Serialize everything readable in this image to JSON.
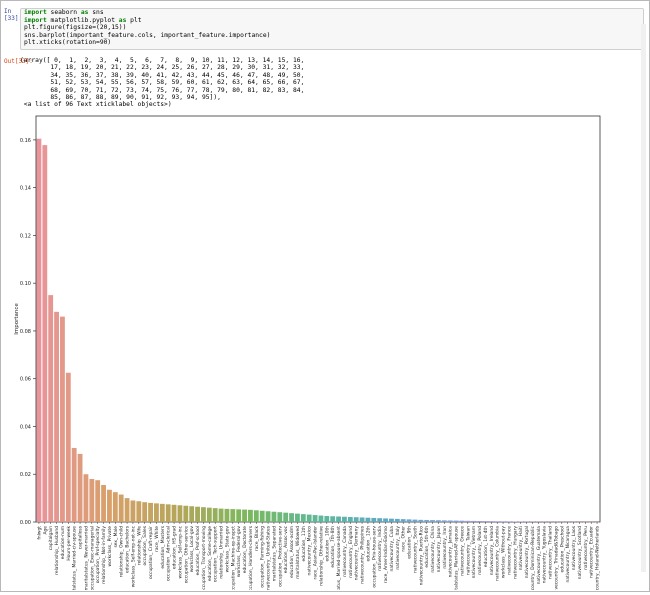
{
  "cell_in": {
    "prompt": "In [33]:",
    "code": [
      [
        [
          "kw",
          "import"
        ],
        [
          "t",
          " seaborn "
        ],
        [
          "kw",
          "as"
        ],
        [
          "t",
          " sns"
        ]
      ],
      [
        [
          "kw",
          "import"
        ],
        [
          "t",
          " matplotlib.pyplot "
        ],
        [
          "kw",
          "as"
        ],
        [
          "t",
          " plt"
        ]
      ],
      [
        [
          "t",
          "plt.figure(figsize=(20,15))"
        ]
      ],
      [
        [
          "t",
          "sns.barplot(important_feature.cols, important_feature.importance)"
        ]
      ],
      [
        [
          "t",
          "plt.xticks(rotation=90)"
        ]
      ]
    ]
  },
  "cell_out": {
    "prompt": "Out[33]:",
    "text": "(array([ 0,  1,  2,  3,  4,  5,  6,  7,  8,  9, 10, 11, 12, 13, 14, 15, 16,\n        17, 18, 19, 20, 21, 22, 23, 24, 25, 26, 27, 28, 29, 30, 31, 32, 33,\n        34, 35, 36, 37, 38, 39, 40, 41, 42, 43, 44, 45, 46, 47, 48, 49, 50,\n        51, 52, 53, 54, 55, 56, 57, 58, 59, 60, 61, 62, 63, 64, 65, 66, 67,\n        68, 69, 70, 71, 72, 73, 74, 75, 76, 77, 78, 79, 80, 81, 82, 83, 84,\n        85, 86, 87, 88, 89, 90, 91, 92, 93, 94, 95]),\n <a list of 96 Text xticklabel objects>)"
  },
  "chart_data": {
    "type": "bar",
    "title": "",
    "xlabel": "",
    "ylabel": "Importance",
    "ylim": [
      0,
      0.17
    ],
    "yticks": [
      0.0,
      0.02,
      0.04,
      0.06,
      0.08,
      0.1,
      0.12,
      0.14,
      0.16
    ],
    "grid": false,
    "palette": [
      "#e8949a",
      "#d9a06a",
      "#b4a65a",
      "#7ab85e",
      "#5fb89a",
      "#5fa8c4",
      "#8aa0dc",
      "#b98fdc",
      "#e092c8"
    ],
    "categories": [
      "fnlwgt",
      "Age",
      "capitalgain",
      "relationship_ Husband",
      "education-num",
      "Hours-per-week",
      "maritalstatus_ Married-civ-spouse",
      "capitalloss",
      "maritalstatus_ Never-married",
      "occupation_ Exec-managerial",
      "occupation_ Prof-specialty",
      "relationship_ Not-in-family",
      "workclass_ Private",
      "sex_ Male",
      "relationship_ Own-child",
      "education_ Bachelors",
      "workclass_ Self-emp-not-inc",
      "relationship_ Wife",
      "occupation_ Sales",
      "occupation_ Craft-repair",
      "race_ White",
      "education_ Masters",
      "occupation_ Adm-clerical",
      "education_ HS-grad",
      "workclass_ Self-emp-inc",
      "occupation_ Other-service",
      "workclass_ Local-gov",
      "education_ Prof-school",
      "occupation_ Transport-moving",
      "education_ Some-college",
      "occupation_ Tech-support",
      "relationship_ Unmarried",
      "workclass_ State-gov",
      "occupation_ Machine-op-inspct",
      "workclass_ Federal-gov",
      "education_ Doctorate",
      "occupation_ Handlers-cleaners",
      "race_ Black",
      "occupation_ Farming-fishing",
      "nativecountry_ United-States",
      "maritalstatus_ Separated",
      "occupation_ Protective-serv",
      "education_ Assoc-voc",
      "education_ Assoc-acdm",
      "maritalstatus_ Widowed",
      "education_ 11th",
      "nativecountry_ Mexico",
      "race_ Asian-Pac-Islander",
      "relationship_ Other-relative",
      "education_ 10th",
      "education_ 7th-8th",
      "maritalstatus_ Married-spouse-absent",
      "nativecountry_ Canada",
      "nativecountry_ England",
      "nativecountry_ Germany",
      "nativecountry_ Philippines",
      "education_ 12th",
      "occupation_ Priv-house-serv",
      "nativecountry_ India",
      "race_ Amer-Indian-Eskimo",
      "nativecountry_ Cuba",
      "nativecountry_ Italy",
      "race_ Other",
      "education_ 9th",
      "nativecountry_ South",
      "nativecountry_ Puerto-Rico",
      "education_ 5th-6th",
      "nativecountry_ China",
      "nativecountry_ Japan",
      "nativecountry_ Iran",
      "nativecountry_ Jamaica",
      "maritalstatus_ Married-AF-spouse",
      "nativecountry_ Greece",
      "nativecountry_ Taiwan",
      "nativecountry_ Vietnam",
      "nativecountry_ Poland",
      "education_ 1st-4th",
      "nativecountry_ Ireland",
      "nativecountry_ Columbia",
      "workclass_ Without-pay",
      "nativecountry_ France",
      "nativecountry_ Hungary",
      "nativecountry_ Haiti",
      "nativecountry_ Portugal",
      "nativecountry_ Dominican-Republic",
      "nativecountry_ Guatemala",
      "nativecountry_ Yugoslavia",
      "nativecountry_ Thailand",
      "nativecountry_ Trinadad&Tobago",
      "education_ Preschool",
      "nativecountry_ Nicaragua",
      "nativecountry_ Laos",
      "nativecountry_ Scotland",
      "nativecountry_ Peru",
      "nativecountry_ Ecuador",
      "nativecountry_ Holand-Netherlands"
    ],
    "values": [
      0.1605,
      0.1578,
      0.095,
      0.088,
      0.086,
      0.0625,
      0.031,
      0.0285,
      0.02,
      0.018,
      0.0175,
      0.0155,
      0.0135,
      0.0125,
      0.0115,
      0.01,
      0.009,
      0.0087,
      0.0083,
      0.008,
      0.0078,
      0.0076,
      0.0074,
      0.0072,
      0.007,
      0.0068,
      0.0066,
      0.0064,
      0.0062,
      0.006,
      0.0058,
      0.0056,
      0.0055,
      0.0054,
      0.0053,
      0.0052,
      0.0051,
      0.0049,
      0.0047,
      0.0045,
      0.0043,
      0.0041,
      0.0039,
      0.0037,
      0.0035,
      0.0033,
      0.0031,
      0.0029,
      0.0027,
      0.0025,
      0.0024,
      0.0023,
      0.0022,
      0.0021,
      0.002,
      0.0019,
      0.0018,
      0.0017,
      0.0016,
      0.0015,
      0.0014,
      0.0013,
      0.0012,
      0.0011,
      0.001,
      0.0009,
      0.00085,
      0.0008,
      0.00075,
      0.0007,
      0.00065,
      0.0006,
      0.00055,
      0.0005,
      0.00046,
      0.00042,
      0.00038,
      0.00034,
      0.0003,
      0.00027,
      0.00024,
      0.00021,
      0.00018,
      0.00016,
      0.00014,
      0.00012,
      0.0001,
      9e-05,
      8e-05,
      7e-05,
      6e-05,
      5e-05,
      4e-05,
      3e-05,
      2e-05,
      1e-05
    ]
  }
}
